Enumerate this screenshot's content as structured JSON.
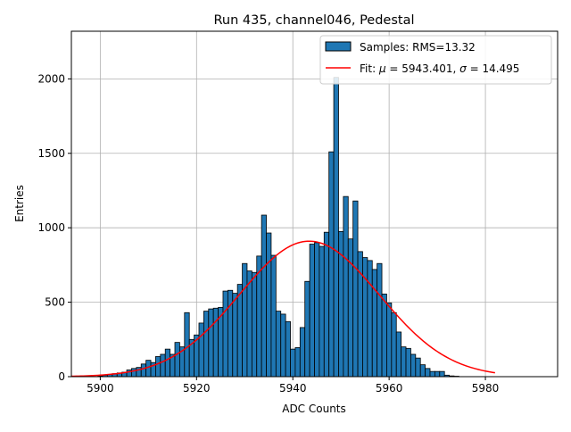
{
  "chart_data": {
    "type": "bar",
    "title": "Run 435, channel046, Pedestal",
    "xlabel": "ADC Counts",
    "ylabel": "Entries",
    "xlim": [
      5894,
      5995
    ],
    "ylim": [
      0,
      2320
    ],
    "xticks": [
      5900,
      5920,
      5940,
      5960,
      5980
    ],
    "yticks": [
      0,
      500,
      1000,
      1500,
      2000
    ],
    "grid": true,
    "legend_position": "top-right",
    "bin_width": 1,
    "bins": {
      "x": [
        5900,
        5901,
        5902,
        5903,
        5904,
        5905,
        5906,
        5907,
        5908,
        5909,
        5910,
        5911,
        5912,
        5913,
        5914,
        5915,
        5916,
        5917,
        5918,
        5919,
        5920,
        5921,
        5922,
        5923,
        5924,
        5925,
        5926,
        5927,
        5928,
        5929,
        5930,
        5931,
        5932,
        5933,
        5934,
        5935,
        5936,
        5937,
        5938,
        5939,
        5940,
        5941,
        5942,
        5943,
        5944,
        5945,
        5946,
        5947,
        5948,
        5949,
        5950,
        5951,
        5952,
        5953,
        5954,
        5955,
        5956,
        5957,
        5958,
        5959,
        5960,
        5961,
        5962,
        5963,
        5964,
        5965,
        5966,
        5967,
        5968,
        5969,
        5970,
        5971,
        5972,
        5973,
        5974
      ],
      "values": [
        5,
        10,
        14,
        20,
        25,
        30,
        45,
        55,
        62,
        85,
        110,
        95,
        135,
        150,
        185,
        150,
        230,
        200,
        430,
        250,
        280,
        360,
        440,
        455,
        460,
        465,
        575,
        580,
        560,
        620,
        760,
        710,
        700,
        810,
        1085,
        965,
        815,
        440,
        420,
        370,
        185,
        195,
        330,
        640,
        890,
        900,
        875,
        970,
        1510,
        2010,
        975,
        1210,
        925,
        1180,
        840,
        800,
        780,
        720,
        760,
        555,
        495,
        430,
        300,
        200,
        190,
        150,
        125,
        80,
        55,
        35,
        35,
        35,
        10,
        5,
        3
      ]
    },
    "series": [
      {
        "name": "Samples: RMS=13.32",
        "type": "histogram",
        "color": "#1f77b4"
      },
      {
        "name": "Fit: $\\mu$ = 5943.401, $\\sigma$ = 14.495",
        "type": "gaussian",
        "mu": 5943.401,
        "sigma": 14.495,
        "amplitude": 910,
        "x_range": [
          5894,
          5982
        ],
        "color": "#ff0000"
      }
    ]
  }
}
